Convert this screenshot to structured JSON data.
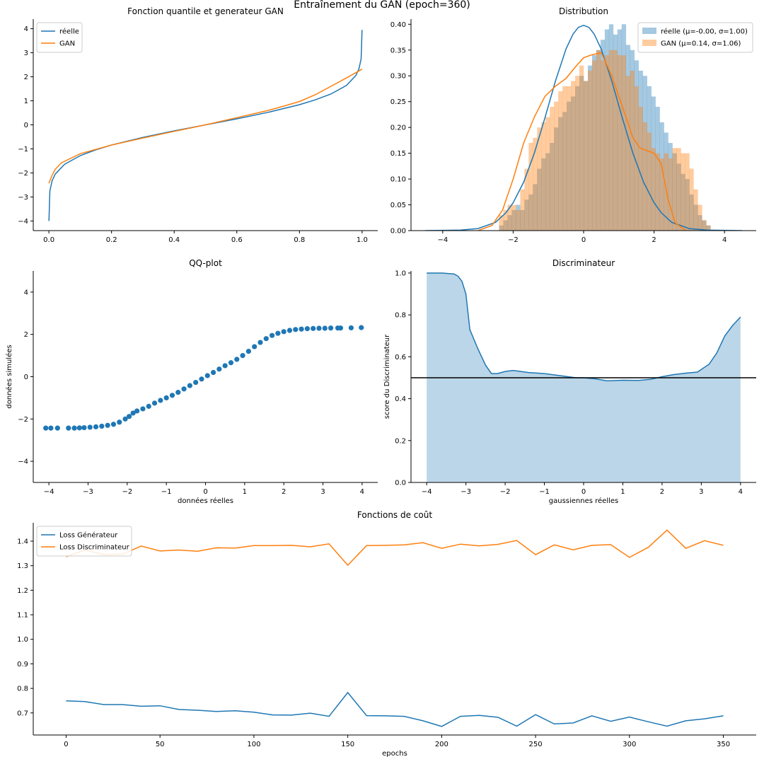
{
  "suptitle": "Entraînement du GAN (epoch=360)",
  "colors": {
    "blue": "#1f77b4",
    "orange": "#ff7f0e"
  },
  "chart_data": [
    {
      "id": "quantile",
      "type": "line",
      "title": "Fonction quantile et generateur GAN",
      "xlabel": "",
      "ylabel": "",
      "xlim": [
        -0.05,
        1.05
      ],
      "ylim": [
        -4.4,
        4.4
      ],
      "xticks": [
        0.0,
        0.2,
        0.4,
        0.6,
        0.8,
        1.0
      ],
      "xtick_labels": [
        "0.0",
        "0.2",
        "0.4",
        "0.6",
        "0.8",
        "1.0"
      ],
      "yticks": [
        -4,
        -3,
        -2,
        -1,
        0,
        1,
        2,
        3,
        4
      ],
      "ytick_labels": [
        "−4",
        "−3",
        "−2",
        "−1",
        "0",
        "1",
        "2",
        "3",
        "4"
      ],
      "legend": "upper-left",
      "series": [
        {
          "name": "réelle",
          "color": "#1f77b4",
          "x": [
            0.0001,
            0.003,
            0.01,
            0.02,
            0.05,
            0.1,
            0.15,
            0.2,
            0.3,
            0.4,
            0.5,
            0.6,
            0.7,
            0.8,
            0.85,
            0.9,
            0.95,
            0.98,
            0.99,
            0.997,
            0.9999
          ],
          "y": [
            -4.0,
            -2.75,
            -2.33,
            -2.05,
            -1.64,
            -1.28,
            -1.04,
            -0.84,
            -0.52,
            -0.25,
            0.0,
            0.25,
            0.52,
            0.84,
            1.04,
            1.28,
            1.64,
            2.05,
            2.33,
            2.75,
            3.95
          ]
        },
        {
          "name": "GAN",
          "color": "#ff7f0e",
          "x": [
            0.0,
            0.01,
            0.02,
            0.04,
            0.1,
            0.2,
            0.3,
            0.4,
            0.5,
            0.6,
            0.7,
            0.75,
            0.8,
            0.85,
            0.9,
            0.95,
            1.0
          ],
          "y": [
            -2.43,
            -2.1,
            -1.85,
            -1.58,
            -1.2,
            -0.84,
            -0.55,
            -0.27,
            0.0,
            0.3,
            0.6,
            0.78,
            0.97,
            1.25,
            1.6,
            1.95,
            2.32
          ]
        }
      ]
    },
    {
      "id": "distribution",
      "type": "bar",
      "title": "Distribution",
      "xlabel": "",
      "ylabel": "",
      "xlim": [
        -4.9,
        4.9
      ],
      "ylim": [
        0,
        0.41
      ],
      "xticks": [
        -4,
        -2,
        0,
        2,
        4
      ],
      "xtick_labels": [
        "−4",
        "−2",
        "0",
        "2",
        "4"
      ],
      "yticks": [
        0.0,
        0.05,
        0.1,
        0.15,
        0.2,
        0.25,
        0.3,
        0.35,
        0.4
      ],
      "ytick_labels": [
        "0.00",
        "0.05",
        "0.10",
        "0.15",
        "0.20",
        "0.25",
        "0.30",
        "0.35",
        "0.40"
      ],
      "legend": "upper-right",
      "bin_width": 0.12,
      "series": [
        {
          "name": "réelle (μ=-0.00, σ=1.00)",
          "color": "#1f77b4",
          "alpha": 0.4,
          "bin_start": -2.4,
          "heights": [
            0.01,
            0.02,
            0.03,
            0.04,
            0.05,
            0.04,
            0.06,
            0.07,
            0.09,
            0.12,
            0.14,
            0.15,
            0.17,
            0.2,
            0.22,
            0.23,
            0.25,
            0.26,
            0.28,
            0.3,
            0.29,
            0.32,
            0.34,
            0.35,
            0.37,
            0.39,
            0.4,
            0.38,
            0.39,
            0.4,
            0.36,
            0.35,
            0.33,
            0.31,
            0.3,
            0.28,
            0.26,
            0.24,
            0.21,
            0.19,
            0.17,
            0.15,
            0.13,
            0.11,
            0.1,
            0.07,
            0.05,
            0.03,
            0.02,
            0.01
          ]
        },
        {
          "name": "GAN (μ=0.14, σ=1.06)",
          "color": "#ff7f0e",
          "alpha": 0.4,
          "bin_start": -2.4,
          "heights": [
            0.03,
            0.04,
            0.05,
            0.05,
            0.04,
            0.08,
            0.12,
            0.17,
            0.18,
            0.2,
            0.21,
            0.22,
            0.24,
            0.25,
            0.27,
            0.28,
            0.28,
            0.29,
            0.3,
            0.32,
            0.29,
            0.31,
            0.33,
            0.35,
            0.33,
            0.34,
            0.35,
            0.35,
            0.34,
            0.34,
            0.3,
            0.31,
            0.28,
            0.24,
            0.21,
            0.19,
            0.16,
            0.15,
            0.14,
            0.15,
            0.14,
            0.16,
            0.16,
            0.15,
            0.15,
            0.12,
            0.08,
            0.05,
            0.02,
            0.01
          ]
        }
      ],
      "kde": [
        {
          "color": "#1f77b4",
          "x": [
            -4.5,
            -3.5,
            -3.0,
            -2.5,
            -2.2,
            -2.0,
            -1.7,
            -1.4,
            -1.1,
            -0.8,
            -0.5,
            -0.3,
            -0.15,
            0.0,
            0.15,
            0.3,
            0.5,
            0.8,
            1.1,
            1.4,
            1.7,
            2.0,
            2.2,
            2.5,
            3.0,
            3.5,
            4.5
          ],
          "y": [
            0.0,
            0.001,
            0.004,
            0.016,
            0.035,
            0.054,
            0.094,
            0.15,
            0.218,
            0.29,
            0.352,
            0.381,
            0.394,
            0.398,
            0.394,
            0.381,
            0.352,
            0.29,
            0.218,
            0.15,
            0.094,
            0.054,
            0.035,
            0.016,
            0.004,
            0.001,
            0.0
          ]
        },
        {
          "color": "#ff7f0e",
          "x": [
            -3.0,
            -2.6,
            -2.3,
            -2.0,
            -1.7,
            -1.4,
            -1.1,
            -0.8,
            -0.5,
            -0.2,
            0.0,
            0.2,
            0.5,
            0.8,
            1.1,
            1.4,
            1.6,
            1.8,
            2.0,
            2.2,
            2.4,
            2.6,
            2.9
          ],
          "y": [
            0.0,
            0.01,
            0.04,
            0.1,
            0.17,
            0.22,
            0.26,
            0.28,
            0.295,
            0.32,
            0.335,
            0.34,
            0.345,
            0.3,
            0.24,
            0.18,
            0.16,
            0.155,
            0.15,
            0.13,
            0.06,
            0.015,
            0.0
          ]
        }
      ]
    },
    {
      "id": "qqplot",
      "type": "scatter",
      "title": "QQ-plot",
      "xlabel": "données réelles",
      "ylabel": "données simulées",
      "xlim": [
        -4.4,
        4.4
      ],
      "ylim": [
        -5.0,
        5.0
      ],
      "xticks": [
        -4,
        -3,
        -2,
        -1,
        0,
        1,
        2,
        3,
        4
      ],
      "xtick_labels": [
        "−4",
        "−3",
        "−2",
        "−1",
        "0",
        "1",
        "2",
        "3",
        "4"
      ],
      "yticks": [
        -4,
        -2,
        0,
        2,
        4
      ],
      "ytick_labels": [
        "−4",
        "−2",
        "0",
        "2",
        "4"
      ],
      "color": "#1f77b4",
      "points": [
        [
          -4.08,
          -2.43
        ],
        [
          -3.95,
          -2.43
        ],
        [
          -3.78,
          -2.43
        ],
        [
          -3.5,
          -2.43
        ],
        [
          -3.35,
          -2.43
        ],
        [
          -3.22,
          -2.42
        ],
        [
          -3.1,
          -2.41
        ],
        [
          -2.95,
          -2.39
        ],
        [
          -2.8,
          -2.37
        ],
        [
          -2.65,
          -2.34
        ],
        [
          -2.5,
          -2.3
        ],
        [
          -2.35,
          -2.25
        ],
        [
          -2.2,
          -2.15
        ],
        [
          -2.05,
          -2.0
        ],
        [
          -1.95,
          -1.88
        ],
        [
          -1.85,
          -1.72
        ],
        [
          -1.75,
          -1.62
        ],
        [
          -1.6,
          -1.52
        ],
        [
          -1.45,
          -1.4
        ],
        [
          -1.3,
          -1.25
        ],
        [
          -1.15,
          -1.12
        ],
        [
          -1.0,
          -1.0
        ],
        [
          -0.85,
          -0.88
        ],
        [
          -0.7,
          -0.74
        ],
        [
          -0.55,
          -0.58
        ],
        [
          -0.4,
          -0.42
        ],
        [
          -0.25,
          -0.27
        ],
        [
          -0.1,
          -0.11
        ],
        [
          0.05,
          0.05
        ],
        [
          0.2,
          0.2
        ],
        [
          0.35,
          0.36
        ],
        [
          0.5,
          0.52
        ],
        [
          0.65,
          0.66
        ],
        [
          0.8,
          0.82
        ],
        [
          0.95,
          1.0
        ],
        [
          1.1,
          1.2
        ],
        [
          1.25,
          1.42
        ],
        [
          1.4,
          1.62
        ],
        [
          1.55,
          1.8
        ],
        [
          1.7,
          1.95
        ],
        [
          1.85,
          2.05
        ],
        [
          2.0,
          2.13
        ],
        [
          2.15,
          2.19
        ],
        [
          2.3,
          2.23
        ],
        [
          2.45,
          2.25
        ],
        [
          2.6,
          2.27
        ],
        [
          2.75,
          2.28
        ],
        [
          2.9,
          2.29
        ],
        [
          3.05,
          2.29
        ],
        [
          3.2,
          2.3
        ],
        [
          3.38,
          2.3
        ],
        [
          3.45,
          2.3
        ],
        [
          3.72,
          2.31
        ],
        [
          3.98,
          2.32
        ]
      ]
    },
    {
      "id": "discriminator",
      "type": "area",
      "title": "Discriminateur",
      "xlabel": "gaussiennes réelles",
      "ylabel": "score du Discriminateur",
      "xlim": [
        -4.4,
        4.4
      ],
      "ylim": [
        0,
        1.01
      ],
      "xticks": [
        -4,
        -3,
        -2,
        -1,
        0,
        1,
        2,
        3,
        4
      ],
      "xtick_labels": [
        "−4",
        "−3",
        "−2",
        "−1",
        "0",
        "1",
        "2",
        "3",
        "4"
      ],
      "yticks": [
        0.0,
        0.2,
        0.4,
        0.6,
        0.8,
        1.0
      ],
      "ytick_labels": [
        "0.0",
        "0.2",
        "0.4",
        "0.6",
        "0.8",
        "1.0"
      ],
      "hline": 0.5,
      "color": "#1f77b4",
      "x": [
        -4.0,
        -3.6,
        -3.3,
        -3.2,
        -3.1,
        -3.0,
        -2.9,
        -2.7,
        -2.5,
        -2.35,
        -2.2,
        -2.0,
        -1.8,
        -1.6,
        -1.4,
        -1.0,
        -0.6,
        -0.2,
        0.0,
        0.3,
        0.6,
        1.0,
        1.4,
        1.7,
        2.0,
        2.3,
        2.6,
        2.9,
        3.2,
        3.4,
        3.6,
        3.8,
        4.0
      ],
      "y": [
        1.0,
        1.0,
        0.995,
        0.985,
        0.96,
        0.9,
        0.73,
        0.64,
        0.56,
        0.52,
        0.52,
        0.53,
        0.535,
        0.53,
        0.525,
        0.52,
        0.51,
        0.5,
        0.5,
        0.495,
        0.485,
        0.488,
        0.487,
        0.492,
        0.505,
        0.515,
        0.522,
        0.527,
        0.565,
        0.62,
        0.7,
        0.75,
        0.79
      ]
    },
    {
      "id": "losses",
      "type": "line",
      "title": "Fonctions de coût",
      "xlabel": "epochs",
      "ylabel": "",
      "xlim": [
        -17.5,
        367.5
      ],
      "ylim": [
        0.61,
        1.475
      ],
      "xticks": [
        0,
        50,
        100,
        150,
        200,
        250,
        300,
        350
      ],
      "xtick_labels": [
        "0",
        "50",
        "100",
        "150",
        "200",
        "250",
        "300",
        "350"
      ],
      "yticks": [
        0.7,
        0.8,
        0.9,
        1.0,
        1.1,
        1.2,
        1.3,
        1.4
      ],
      "ytick_labels": [
        "0.7",
        "0.8",
        "0.9",
        "1.0",
        "1.1",
        "1.2",
        "1.3",
        "1.4"
      ],
      "legend": "upper-left",
      "x": [
        0,
        10,
        20,
        30,
        40,
        50,
        60,
        70,
        80,
        90,
        100,
        110,
        120,
        130,
        140,
        150,
        160,
        170,
        180,
        190,
        200,
        210,
        220,
        230,
        240,
        250,
        260,
        270,
        280,
        290,
        300,
        310,
        320,
        330,
        340,
        350
      ],
      "series": [
        {
          "name": "Loss Générateur",
          "color": "#1f77b4",
          "values": [
            0.749,
            0.746,
            0.734,
            0.734,
            0.727,
            0.729,
            0.714,
            0.711,
            0.706,
            0.709,
            0.703,
            0.692,
            0.691,
            0.699,
            0.686,
            0.783,
            0.689,
            0.688,
            0.686,
            0.668,
            0.645,
            0.686,
            0.69,
            0.682,
            0.646,
            0.693,
            0.655,
            0.659,
            0.688,
            0.666,
            0.683,
            0.664,
            0.646,
            0.668,
            0.676,
            0.688
          ]
        },
        {
          "name": "Loss Discriminateur",
          "color": "#ff7f0e",
          "values": [
            1.337,
            1.364,
            1.346,
            1.347,
            1.38,
            1.36,
            1.364,
            1.359,
            1.373,
            1.372,
            1.382,
            1.382,
            1.383,
            1.377,
            1.389,
            1.302,
            1.382,
            1.383,
            1.385,
            1.394,
            1.371,
            1.388,
            1.381,
            1.387,
            1.403,
            1.345,
            1.385,
            1.365,
            1.383,
            1.386,
            1.334,
            1.375,
            1.445,
            1.371,
            1.402,
            1.383
          ]
        }
      ]
    }
  ]
}
